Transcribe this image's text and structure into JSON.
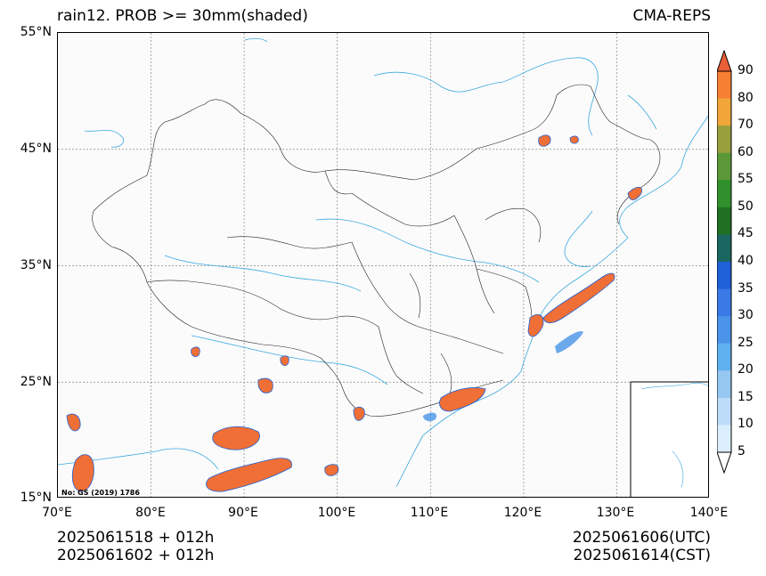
{
  "title": {
    "left": "rain12. PROB >= 30mm(shaded)",
    "right": "CMA-REPS"
  },
  "map": {
    "lat_ticks": [
      "55°N",
      "45°N",
      "35°N",
      "25°N",
      "15°N"
    ],
    "lon_ticks": [
      "70°E",
      "80°E",
      "90°E",
      "100°E",
      "110°E",
      "120°E",
      "130°E",
      "140°E"
    ],
    "extent": {
      "lon": [
        70,
        140
      ],
      "lat": [
        15,
        55
      ]
    },
    "gridlines": true,
    "watermark": "No: GS (2019) 1786",
    "inset": "South China Sea inset, bottom-right"
  },
  "colorbar": {
    "levels": [
      "5",
      "10",
      "15",
      "20",
      "25",
      "30",
      "35",
      "40",
      "45",
      "50",
      "55",
      "60",
      "70",
      "80",
      "90"
    ],
    "colors": [
      "#ffffff",
      "#dbeefc",
      "#bcdcf7",
      "#95c7f1",
      "#5fb0ef",
      "#4994e9",
      "#3a7ae6",
      "#1f60d8",
      "#1b6660",
      "#206f22",
      "#31902d",
      "#5b9838",
      "#98a03e",
      "#f0a639",
      "#f77f32",
      "#e85e36"
    ],
    "extend": "both"
  },
  "footer": {
    "left_line1": "2025061518  +  012h",
    "left_line2": "2025061602  +  012h",
    "right_line1": "2025061606(UTC)",
    "right_line2": "2025061614(CST)"
  },
  "colors": {
    "rain_high": "#ef6f36",
    "river": "#3aa8e0",
    "border": "#222222",
    "grid": "#888888"
  }
}
